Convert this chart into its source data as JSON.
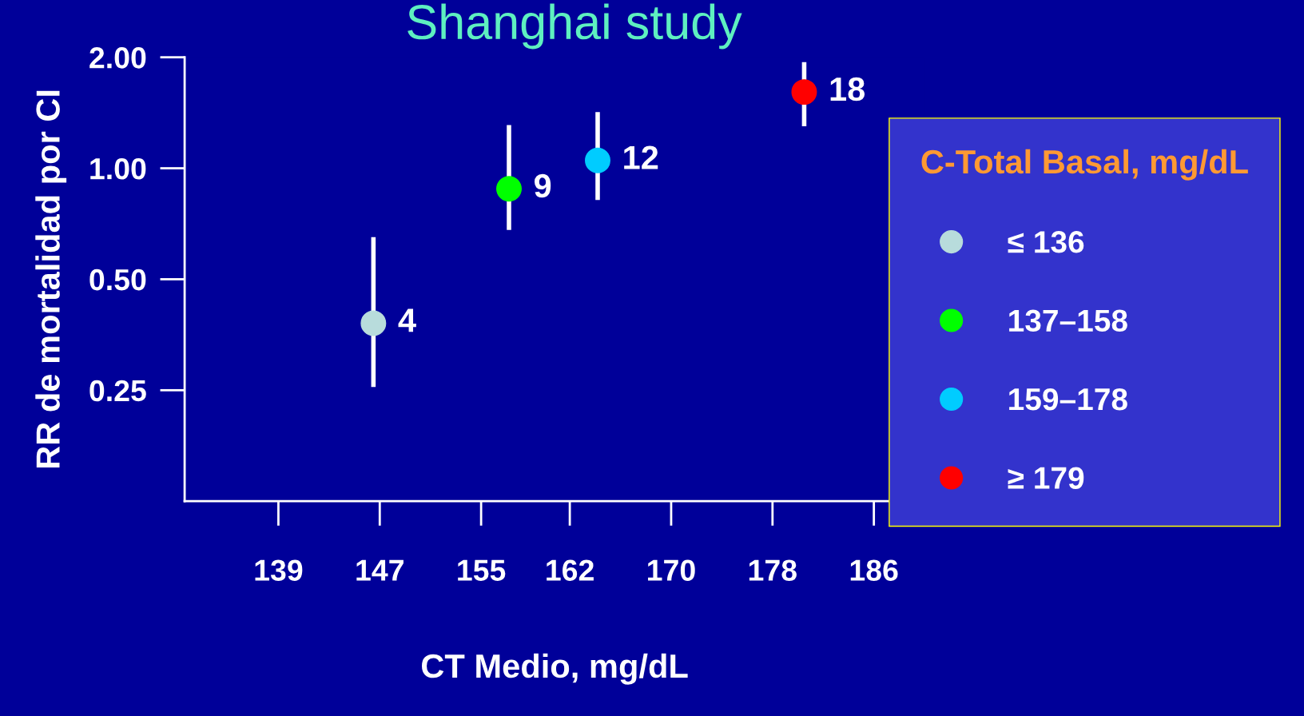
{
  "chart_data": {
    "type": "scatter",
    "title": "Shanghai study",
    "xlabel": "CT Medio, mg/dL",
    "ylabel": "RR de mortalidad por CI",
    "legend_title": "C-Total Basal, mg/dL",
    "series": [
      {
        "name": "≤ 136",
        "color": "#b8dcdc",
        "x": [
          146.5
        ],
        "values": [
          0.38
        ],
        "errors": [
          [
            0.255,
            0.65
          ]
        ]
      },
      {
        "name": "137–158",
        "color": "#00ff00",
        "x": [
          157.2
        ],
        "values": [
          0.88
        ],
        "errors": [
          [
            0.68,
            1.31
          ]
        ]
      },
      {
        "name": "159–178",
        "color": "#00ccff",
        "x": [
          164.2
        ],
        "values": [
          1.05
        ],
        "errors": [
          [
            0.82,
            1.42
          ]
        ]
      },
      {
        "name": "≥ 179",
        "color": "#ff0000",
        "x": [
          180.5
        ],
        "values": [
          1.61
        ],
        "errors": [
          [
            1.3,
            1.94
          ]
        ]
      }
    ],
    "annotations": [
      {
        "text": "4",
        "x": 146.5,
        "y": 0.38
      },
      {
        "text": "9",
        "x": 157.2,
        "y": 0.88
      },
      {
        "text": "12",
        "x": 164.2,
        "y": 1.05
      },
      {
        "text": "18",
        "x": 180.5,
        "y": 1.61
      }
    ],
    "log": "y",
    "xlim": [
      131.6,
      190
    ],
    "xticks": [
      139,
      147,
      155,
      162,
      170,
      178,
      186
    ],
    "ylim": [
      0.125,
      2.0
    ],
    "yticks": [
      {
        "value": 0.25,
        "label": "0.25"
      },
      {
        "value": 0.5,
        "label": "0.50"
      },
      {
        "value": 1,
        "label": "1.00"
      },
      {
        "value": 2,
        "label": "2.00"
      }
    ],
    "grid": false,
    "legend": "right",
    "marker": "circle"
  }
}
